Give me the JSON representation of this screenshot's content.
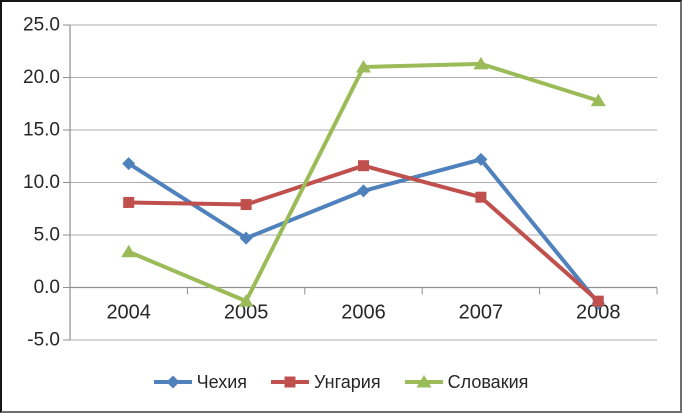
{
  "chart_data": {
    "type": "line",
    "categories": [
      "2004",
      "2005",
      "2006",
      "2007",
      "2008"
    ],
    "series": [
      {
        "name": "Чехия",
        "marker": "diamond",
        "color": "#4F81BD",
        "values": [
          11.8,
          4.7,
          9.2,
          12.2,
          -1.5
        ]
      },
      {
        "name": "Унгария",
        "marker": "square",
        "color": "#C0504D",
        "values": [
          8.1,
          7.9,
          11.6,
          8.6,
          -1.3
        ]
      },
      {
        "name": "Словакия",
        "marker": "triangle",
        "color": "#9BBB59",
        "values": [
          3.4,
          -1.3,
          21.0,
          21.3,
          17.8
        ]
      }
    ],
    "title": "",
    "xlabel": "",
    "ylabel": "",
    "ylim": [
      -5,
      25
    ],
    "ytick_step": 5,
    "ytick_labels": [
      "25.0",
      "20.0",
      "15.0",
      "10.0",
      "5.0",
      "0.0",
      "-5.0"
    ],
    "grid": true,
    "legend_position": "bottom",
    "category_axis_at_value": 0,
    "gridline_color": "#adadad",
    "axis_color": "#8f8f8f",
    "text_color": "#262626"
  }
}
